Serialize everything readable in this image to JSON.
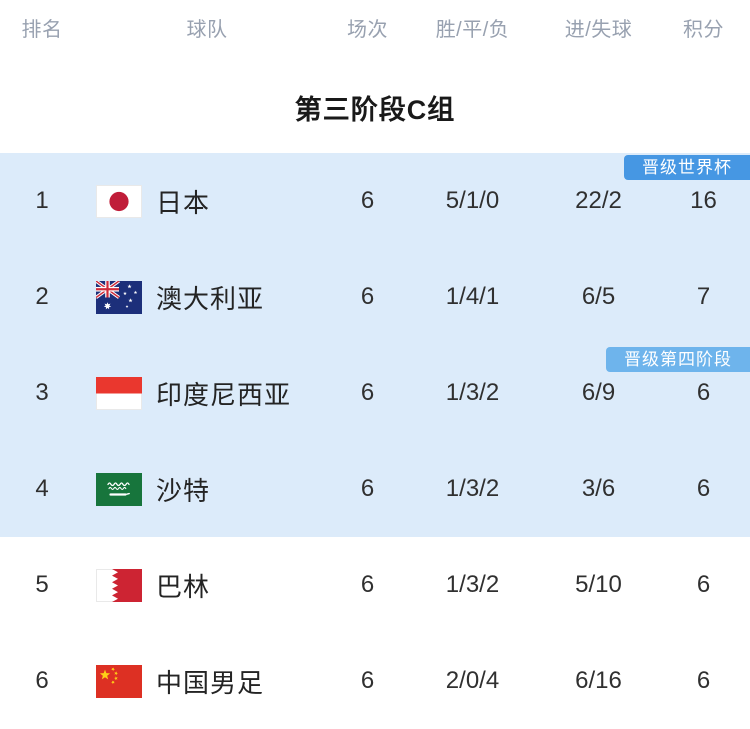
{
  "table": {
    "title": "第三阶段C组",
    "headers": {
      "rank": "排名",
      "team": "球队",
      "matches": "场次",
      "wdl": "胜/平/负",
      "goals": "进/失球",
      "points": "积分"
    },
    "rows": [
      {
        "rank": "1",
        "team": "日本",
        "flag": "japan-flag-icon",
        "matches": "6",
        "wdl": "5/1/0",
        "goals": "22/2",
        "points": "16",
        "badge": "晋级世界杯",
        "badge_color": "#4697e3",
        "highlighted": true
      },
      {
        "rank": "2",
        "team": "澳大利亚",
        "flag": "australia-flag-icon",
        "matches": "6",
        "wdl": "1/4/1",
        "goals": "6/5",
        "points": "7",
        "badge": "",
        "badge_color": "",
        "highlighted": true
      },
      {
        "rank": "3",
        "team": "印度尼西亚",
        "flag": "indonesia-flag-icon",
        "matches": "6",
        "wdl": "1/3/2",
        "goals": "6/9",
        "points": "6",
        "badge": "晋级第四阶段",
        "badge_color": "#6eb4ec",
        "highlighted": true
      },
      {
        "rank": "4",
        "team": "沙特",
        "flag": "saudi-arabia-flag-icon",
        "matches": "6",
        "wdl": "1/3/2",
        "goals": "3/6",
        "points": "6",
        "badge": "",
        "badge_color": "",
        "highlighted": true
      },
      {
        "rank": "5",
        "team": "巴林",
        "flag": "bahrain-flag-icon",
        "matches": "6",
        "wdl": "1/3/2",
        "goals": "5/10",
        "points": "6",
        "badge": "",
        "badge_color": "",
        "highlighted": false
      },
      {
        "rank": "6",
        "team": "中国男足",
        "flag": "china-flag-icon",
        "matches": "6",
        "wdl": "2/0/4",
        "goals": "6/16",
        "points": "6",
        "badge": "",
        "badge_color": "",
        "highlighted": false
      }
    ]
  },
  "colors": {
    "highlight_row_bg": "#dcebfa",
    "world_cup_badge_bg": "#4697e3",
    "fourth_stage_badge_bg": "#6eb4ec",
    "header_text": "#98a1b0"
  }
}
